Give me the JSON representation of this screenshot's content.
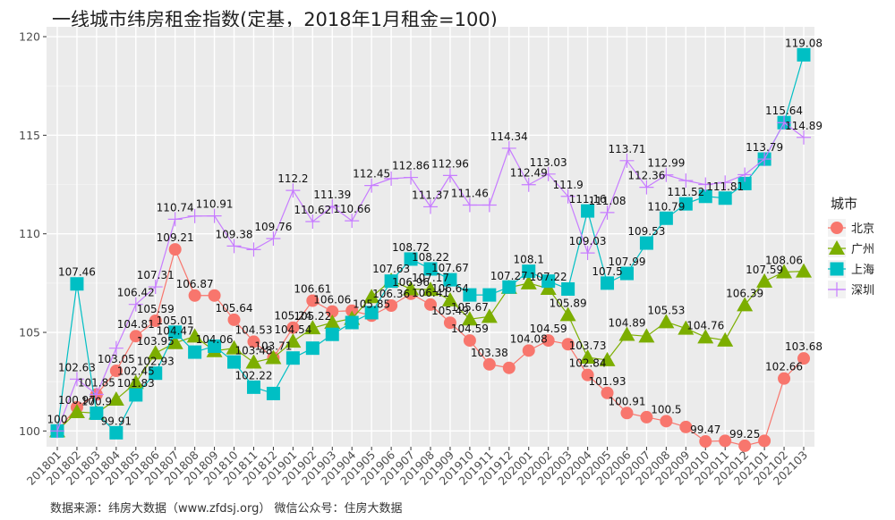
{
  "title": "一线城市纬房租金指数(定基，2018年1月租金=100)",
  "source": "数据来源：纬房大数据（www.zfdsj.org）  微信公众号：住房大数据",
  "chart_data": {
    "type": "line",
    "title": "一线城市纬房租金指数(定基，2018年1月租金=100)",
    "xlabel": "",
    "ylabel": "",
    "ylim": [
      99.2,
      120.5
    ],
    "yticks": [
      100,
      105,
      110,
      115,
      120
    ],
    "grid": true,
    "legend_title": "城市",
    "legend_position": "right",
    "categories": [
      "201801",
      "201802",
      "201803",
      "201804",
      "201805",
      "201806",
      "201807",
      "201808",
      "201809",
      "201810",
      "201811",
      "201812",
      "201901",
      "201902",
      "201903",
      "201904",
      "201905",
      "201906",
      "201907",
      "201908",
      "201909",
      "201910",
      "201911",
      "201912",
      "202001",
      "202002",
      "202003",
      "202004",
      "202005",
      "202006",
      "202007",
      "202008",
      "202009",
      "202010",
      "202011",
      "202012",
      "202101",
      "202102",
      "202103"
    ],
    "series": [
      {
        "name": "北京",
        "marker": "circle",
        "color": "#F8766D",
        "values": [
          100,
          101.2,
          101.85,
          103.05,
          104.81,
          105.59,
          109.21,
          106.87,
          106.87,
          105.64,
          104.53,
          103.71,
          105.24,
          106.61,
          106.06,
          106.1,
          105.85,
          106.36,
          106.96,
          106.41,
          105.49,
          104.59,
          103.38,
          103.2,
          104.08,
          104.59,
          104.4,
          102.84,
          101.93,
          100.91,
          100.7,
          100.5,
          100.2,
          99.47,
          99.5,
          99.25,
          99.5,
          102.66,
          103.68
        ],
        "labels": [
          "100",
          "",
          "101.85",
          "103.05",
          "104.81",
          "105.59",
          "109.21",
          "106.87",
          "",
          "105.64",
          "104.53",
          "",
          "105.24",
          "106.61",
          "106.06",
          "",
          "105.85",
          "106.36",
          "106.96",
          "106.41",
          "105.49",
          "104.59",
          "103.38",
          "",
          "104.08",
          "104.59",
          "",
          "102.84",
          "101.93",
          "100.91",
          "",
          "100.5",
          "",
          "99.47",
          "",
          "99.25",
          "",
          "102.66",
          "103.68"
        ]
      },
      {
        "name": "广州",
        "marker": "triangle",
        "color": "#7CAE00",
        "values": [
          100,
          100.97,
          100.9,
          101.6,
          102.45,
          103.95,
          104.47,
          104.8,
          104.06,
          104.2,
          103.48,
          103.71,
          104.54,
          105.22,
          105.5,
          105.7,
          106.8,
          107.63,
          107.2,
          107.17,
          106.64,
          105.67,
          105.8,
          107.27,
          107.5,
          107.22,
          105.89,
          103.73,
          103.6,
          104.89,
          104.8,
          105.53,
          105.2,
          104.76,
          104.6,
          106.39,
          107.59,
          108.06,
          108.1
        ],
        "labels": [
          "",
          "100.97",
          "100.9",
          "",
          "102.45",
          "103.95",
          "104.47",
          "",
          "104.06",
          "",
          "103.48",
          "103.71",
          "104.54",
          "105.22",
          "",
          "",
          "",
          "107.63",
          "",
          "107.17",
          "106.64",
          "105.67",
          "",
          "107.27",
          "",
          "107.22",
          "105.89",
          "103.73",
          "",
          "104.89",
          "",
          "105.53",
          "",
          "104.76",
          "",
          "106.39",
          "107.59",
          "108.06",
          ""
        ]
      },
      {
        "name": "上海",
        "marker": "square",
        "color": "#00BFC4",
        "values": [
          100,
          107.46,
          100.9,
          99.91,
          101.83,
          102.93,
          105.01,
          104.0,
          104.3,
          103.5,
          102.22,
          101.9,
          103.7,
          104.2,
          104.9,
          105.5,
          106.0,
          107.6,
          108.72,
          108.22,
          107.67,
          106.9,
          106.9,
          107.3,
          108.1,
          107.6,
          107.2,
          111.16,
          107.5,
          107.99,
          109.53,
          110.79,
          111.52,
          111.9,
          111.81,
          112.55,
          113.79,
          115.64,
          119.08
        ],
        "labels": [
          "",
          "107.46",
          "",
          "99.91",
          "101.83",
          "102.93",
          "105.01",
          "",
          "",
          "",
          "102.22",
          "",
          "",
          "",
          "",
          "",
          "",
          "",
          "108.72",
          "108.22",
          "107.67",
          "",
          "",
          "",
          "108.1",
          "",
          "",
          "111.16",
          "107.5",
          "107.99",
          "109.53",
          "110.79",
          "111.52",
          "",
          "111.81",
          "",
          "113.79",
          "115.64",
          "119.08"
        ]
      },
      {
        "name": "深圳",
        "marker": "plus",
        "color": "#C77CFF",
        "values": [
          100,
          102.63,
          101.85,
          104.2,
          106.42,
          107.31,
          110.74,
          110.9,
          110.91,
          109.38,
          109.2,
          109.76,
          112.2,
          110.62,
          111.39,
          110.66,
          112.45,
          112.8,
          112.86,
          111.37,
          112.96,
          111.46,
          111.46,
          114.34,
          112.49,
          113.03,
          111.9,
          109.03,
          111.08,
          113.71,
          112.36,
          112.99,
          112.7,
          112.5,
          112.6,
          113.0,
          113.79,
          115.64,
          114.89
        ],
        "labels": [
          "",
          "102.63",
          "",
          "",
          "106.42",
          "107.31",
          "110.74",
          "",
          "110.91",
          "109.38",
          "",
          "109.76",
          "112.2",
          "110.62",
          "111.39",
          "110.66",
          "112.45",
          "",
          "112.86",
          "111.37",
          "112.96",
          "111.46",
          "",
          "114.34",
          "112.49",
          "113.03",
          "111.9",
          "109.03",
          "111.08",
          "113.71",
          "112.36",
          "112.99",
          "",
          "",
          "",
          "",
          "",
          "",
          "114.89"
        ]
      }
    ]
  }
}
